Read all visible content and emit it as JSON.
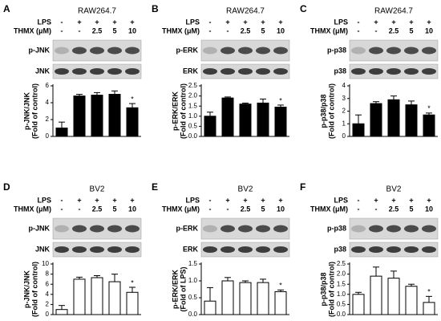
{
  "chart_data": [
    {
      "type": "bar",
      "panel": "A",
      "title": "RAW264.7",
      "treatments": [
        {
          "name": "LPS",
          "values": [
            "-",
            "+",
            "+",
            "+",
            "+"
          ]
        },
        {
          "name": "THMX (μM)",
          "values": [
            "-",
            "-",
            "2.5",
            "5",
            "10"
          ]
        }
      ],
      "blots": [
        "p-JNK",
        "JNK"
      ],
      "ylabel": [
        "p-JNK/JNK",
        "(Fold of control)"
      ],
      "ylim": [
        0,
        6
      ],
      "yticks": [
        0,
        2,
        4,
        6
      ],
      "values": [
        1.0,
        4.8,
        4.9,
        5.0,
        3.4
      ],
      "errors": [
        0.7,
        0.2,
        0.3,
        0.4,
        0.5
      ],
      "significance": [
        null,
        null,
        null,
        null,
        "*"
      ],
      "color": "#000000"
    },
    {
      "type": "bar",
      "panel": "B",
      "title": "RAW264.7",
      "treatments": [
        {
          "name": "LPS",
          "values": [
            "-",
            "+",
            "+",
            "+",
            "+"
          ]
        },
        {
          "name": "THMX (μM)",
          "values": [
            "-",
            "-",
            "2.5",
            "5",
            "10"
          ]
        }
      ],
      "blots": [
        "p-ERK",
        "ERK"
      ],
      "ylabel": [
        "p-ERK/ERK",
        "(Fold of control)"
      ],
      "ylim": [
        0,
        2.5
      ],
      "yticks": [
        {
          "value": 0,
          "label": "0.0"
        },
        0.5,
        {
          "value": 1,
          "label": "1.0"
        },
        1.5,
        {
          "value": 2,
          "label": "2.0"
        },
        2.5
      ],
      "values": [
        1.0,
        1.9,
        1.6,
        1.65,
        1.45
      ],
      "errors": [
        0.2,
        0.05,
        0.05,
        0.2,
        0.1
      ],
      "significance": [
        null,
        null,
        null,
        null,
        "*"
      ],
      "color": "#000000"
    },
    {
      "type": "bar",
      "panel": "C",
      "title": "RAW264.7",
      "treatments": [
        {
          "name": "LPS",
          "values": [
            "-",
            "+",
            "+",
            "+",
            "+"
          ]
        },
        {
          "name": "THMX (μM)",
          "values": [
            "-",
            "-",
            "2.5",
            "5",
            "10"
          ]
        }
      ],
      "blots": [
        "p-p38",
        "p38"
      ],
      "ylabel": [
        "p-p38/p38",
        "(Fold of control)"
      ],
      "ylim": [
        0,
        4
      ],
      "yticks": [
        0,
        1,
        2,
        3,
        4
      ],
      "values": [
        1.0,
        2.6,
        2.9,
        2.5,
        1.7
      ],
      "errors": [
        0.7,
        0.15,
        0.3,
        0.3,
        0.15
      ],
      "significance": [
        null,
        null,
        null,
        null,
        "*"
      ],
      "color": "#000000"
    },
    {
      "type": "bar",
      "panel": "D",
      "title": "BV2",
      "treatments": [
        {
          "name": "LPS",
          "values": [
            "-",
            "+",
            "+",
            "+",
            "+"
          ]
        },
        {
          "name": "THMX (μM)",
          "values": [
            "-",
            "-",
            "2.5",
            "5",
            "10"
          ]
        }
      ],
      "blots": [
        "p-JNK",
        "JNK"
      ],
      "ylabel": [
        "p-JNK/JNK",
        "(Fold of control)"
      ],
      "ylim": [
        0,
        10
      ],
      "yticks": [
        0,
        2,
        4,
        6,
        8,
        10
      ],
      "values": [
        1.0,
        7.0,
        7.3,
        6.5,
        4.4
      ],
      "errors": [
        0.8,
        0.4,
        0.4,
        1.5,
        1.0
      ],
      "significance": [
        null,
        null,
        null,
        null,
        "*"
      ],
      "color": "#ffffff"
    },
    {
      "type": "bar",
      "panel": "E",
      "title": "BV2",
      "treatments": [
        {
          "name": "LPS",
          "values": [
            "-",
            "+",
            "+",
            "+",
            "+"
          ]
        },
        {
          "name": "THMX (μM)",
          "values": [
            "-",
            "-",
            "2.5",
            "5",
            "10"
          ]
        }
      ],
      "blots": [
        "p-ERK",
        "ERK"
      ],
      "ylabel": [
        "p-ERK/ERK",
        "(Fold of LPS)"
      ],
      "ylim": [
        0,
        1.5
      ],
      "yticks": [
        {
          "value": 0,
          "label": "0.0"
        },
        0.5,
        {
          "value": 1,
          "label": "1.0"
        },
        1.5
      ],
      "values": [
        0.4,
        1.0,
        0.95,
        0.95,
        0.68
      ],
      "errors": [
        0.4,
        0.1,
        0.05,
        0.1,
        0.05
      ],
      "significance": [
        null,
        null,
        null,
        null,
        "*"
      ],
      "color": "#ffffff"
    },
    {
      "type": "bar",
      "panel": "F",
      "title": "BV2",
      "treatments": [
        {
          "name": "LPS",
          "values": [
            "-",
            "+",
            "+",
            "+",
            "+"
          ]
        },
        {
          "name": "THMX (μM)",
          "values": [
            "-",
            "-",
            "2.5",
            "5",
            "10"
          ]
        }
      ],
      "blots": [
        "p-p38",
        "p38"
      ],
      "ylabel": [
        "p-p38/p38",
        "(Fold of control)"
      ],
      "ylim": [
        0,
        2.5
      ],
      "yticks": [
        {
          "value": 0,
          "label": "0.0"
        },
        0.5,
        {
          "value": 1,
          "label": "1.0"
        },
        1.5,
        {
          "value": 2,
          "label": "2.0"
        },
        2.5
      ],
      "values": [
        1.0,
        1.9,
        1.8,
        1.4,
        0.6
      ],
      "errors": [
        0.1,
        0.45,
        0.35,
        0.1,
        0.3
      ],
      "significance": [
        null,
        null,
        null,
        null,
        "*"
      ],
      "color": "#ffffff"
    }
  ]
}
